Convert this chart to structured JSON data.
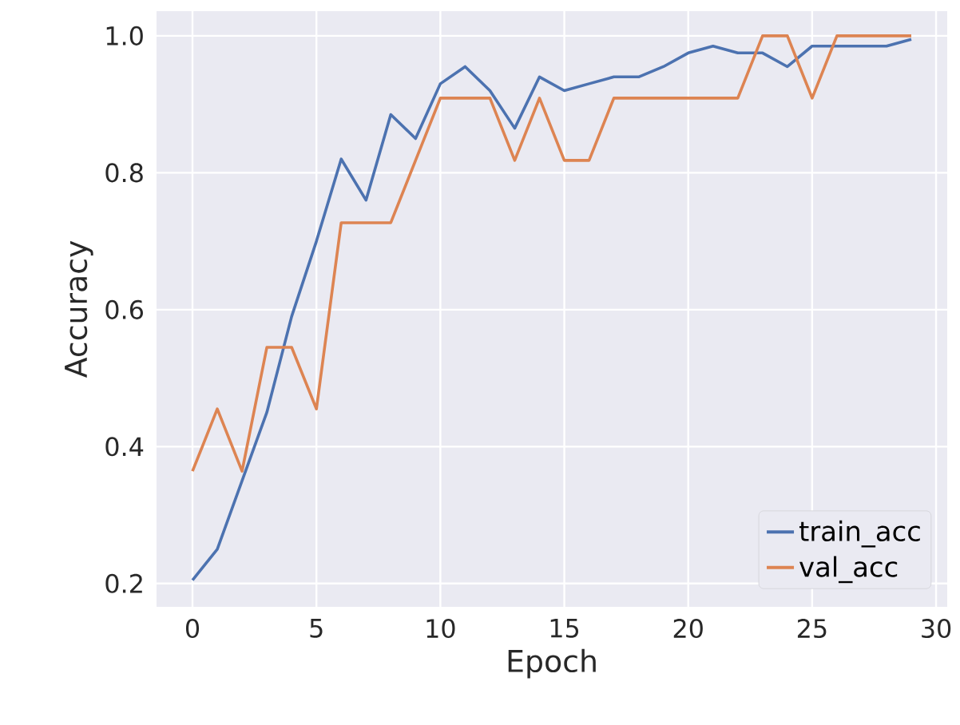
{
  "chart_data": {
    "type": "line",
    "xlabel": "Epoch",
    "ylabel": "Accuracy",
    "x": [
      0,
      1,
      2,
      3,
      4,
      5,
      6,
      7,
      8,
      9,
      10,
      11,
      12,
      13,
      14,
      15,
      16,
      17,
      18,
      19,
      20,
      21,
      22,
      23,
      24,
      25,
      26,
      27,
      28,
      29
    ],
    "series": [
      {
        "name": "train_acc",
        "color": "#4c72b0",
        "values": [
          0.205,
          0.25,
          0.35,
          0.45,
          0.59,
          0.7,
          0.82,
          0.76,
          0.885,
          0.85,
          0.93,
          0.955,
          0.92,
          0.865,
          0.94,
          0.92,
          0.93,
          0.94,
          0.94,
          0.955,
          0.975,
          0.985,
          0.975,
          0.975,
          0.955,
          0.985,
          0.985,
          0.985,
          0.985,
          0.995
        ]
      },
      {
        "name": "val_acc",
        "color": "#dd8452",
        "values": [
          0.364,
          0.455,
          0.364,
          0.545,
          0.545,
          0.455,
          0.727,
          0.727,
          0.727,
          0.818,
          0.909,
          0.909,
          0.909,
          0.818,
          0.909,
          0.818,
          0.818,
          0.909,
          0.909,
          0.909,
          0.909,
          0.909,
          0.909,
          1.0,
          1.0,
          0.909,
          1.0,
          1.0,
          1.0,
          1.0
        ]
      }
    ],
    "xlim": [
      -1.45,
      30.45
    ],
    "ylim": [
      0.166,
      1.036
    ],
    "xticks": [
      0,
      5,
      10,
      15,
      20,
      25,
      30
    ],
    "yticks": [
      0.2,
      0.4,
      0.6,
      0.8,
      {
        "value": 1.0,
        "label": "1.0"
      }
    ],
    "grid": true,
    "legend": "bottom right",
    "marker": "none",
    "line_style": "solid"
  }
}
